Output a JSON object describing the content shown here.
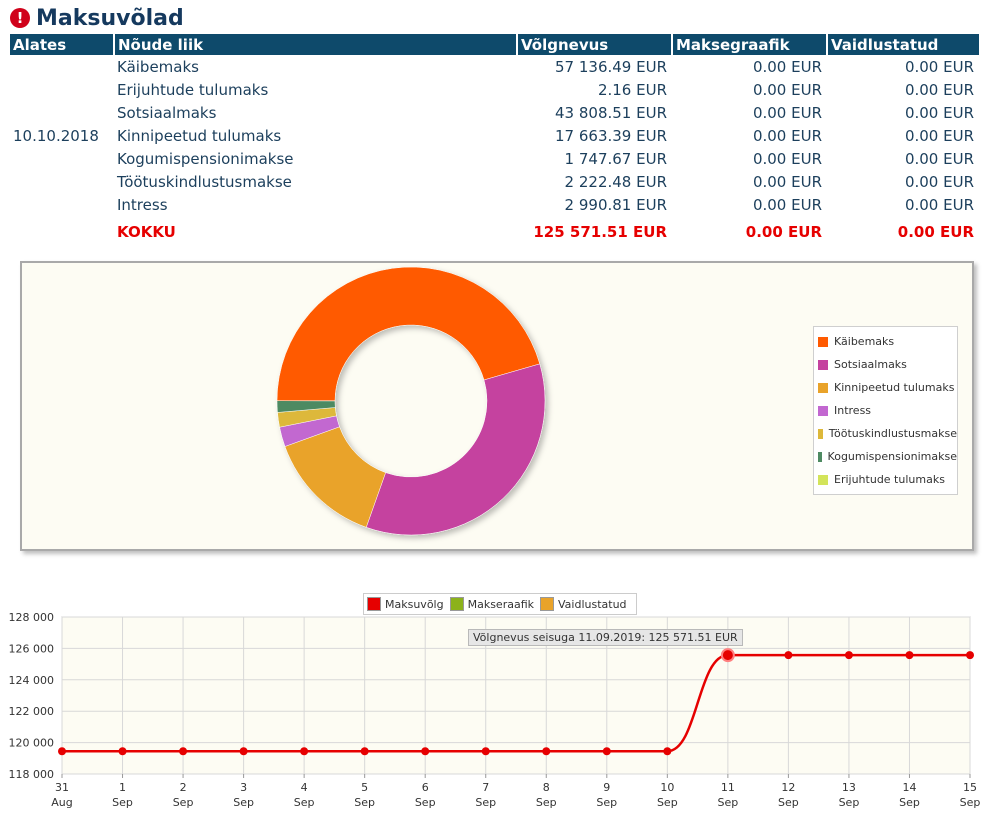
{
  "page": {
    "title": "Maksuvõlad",
    "icon": "exclamation-icon"
  },
  "table": {
    "headers": [
      "Alates",
      "Nõude liik",
      "Võlgnevus",
      "Maksegraafik",
      "Vaidlustatud"
    ],
    "date": "10.10.2018",
    "rows": [
      {
        "type": "Käibemaks",
        "debt": "57 136.49 EUR",
        "schedule": "0.00 EUR",
        "disputed": "0.00 EUR"
      },
      {
        "type": "Erijuhtude tulumaks",
        "debt": "2.16 EUR",
        "schedule": "0.00 EUR",
        "disputed": "0.00 EUR"
      },
      {
        "type": "Sotsiaalmaks",
        "debt": "43 808.51 EUR",
        "schedule": "0.00 EUR",
        "disputed": "0.00 EUR"
      },
      {
        "type": "Kinnipeetud tulumaks",
        "debt": "17 663.39 EUR",
        "schedule": "0.00 EUR",
        "disputed": "0.00 EUR"
      },
      {
        "type": "Kogumispensionimakse",
        "debt": "1 747.67 EUR",
        "schedule": "0.00 EUR",
        "disputed": "0.00 EUR"
      },
      {
        "type": "Töötuskindlustusmakse",
        "debt": "2 222.48 EUR",
        "schedule": "0.00 EUR",
        "disputed": "0.00 EUR"
      },
      {
        "type": "Intress",
        "debt": "2 990.81 EUR",
        "schedule": "0.00 EUR",
        "disputed": "0.00 EUR"
      }
    ],
    "total": {
      "label": "KOKKU",
      "debt": "125 571.51 EUR",
      "schedule": "0.00 EUR",
      "disputed": "0.00 EUR"
    }
  },
  "chart_data": [
    {
      "type": "pie",
      "donut": true,
      "legend_position": "right",
      "slices": [
        {
          "label": "Käibemaks",
          "value": 57136.49,
          "color": "#ff5a00"
        },
        {
          "label": "Sotsiaalmaks",
          "value": 43808.51,
          "color": "#c5429f"
        },
        {
          "label": "Kinnipeetud tulumaks",
          "value": 17663.39,
          "color": "#e9a32a"
        },
        {
          "label": "Intress",
          "value": 2990.81,
          "color": "#c267d0"
        },
        {
          "label": "Töötuskindlustusmakse",
          "value": 2222.48,
          "color": "#ddb83a"
        },
        {
          "label": "Kogumispensionimakse",
          "value": 1747.67,
          "color": "#4e8a62"
        },
        {
          "label": "Erijuhtude tulumaks",
          "value": 2.16,
          "color": "#d3e45a"
        }
      ]
    },
    {
      "type": "line",
      "legend": [
        {
          "name": "Maksuvõlg",
          "color": "#e60000"
        },
        {
          "name": "Makseraafik",
          "color": "#8cb21b"
        },
        {
          "name": "Vaidlustatud",
          "color": "#e9a32a"
        }
      ],
      "x": [
        {
          "day": "31",
          "month": "Aug"
        },
        {
          "day": "1",
          "month": "Sep"
        },
        {
          "day": "2",
          "month": "Sep"
        },
        {
          "day": "3",
          "month": "Sep"
        },
        {
          "day": "4",
          "month": "Sep"
        },
        {
          "day": "5",
          "month": "Sep"
        },
        {
          "day": "6",
          "month": "Sep"
        },
        {
          "day": "7",
          "month": "Sep"
        },
        {
          "day": "8",
          "month": "Sep"
        },
        {
          "day": "9",
          "month": "Sep"
        },
        {
          "day": "10",
          "month": "Sep"
        },
        {
          "day": "11",
          "month": "Sep"
        },
        {
          "day": "12",
          "month": "Sep"
        },
        {
          "day": "13",
          "month": "Sep"
        },
        {
          "day": "14",
          "month": "Sep"
        },
        {
          "day": "15",
          "month": "Sep"
        }
      ],
      "series": [
        {
          "name": "Maksuvõlg",
          "color": "#e60000",
          "values": [
            119450,
            119450,
            119450,
            119450,
            119450,
            119450,
            119450,
            119450,
            119450,
            119450,
            119450,
            125571.51,
            125571.51,
            125571.51,
            125571.51,
            125571.51
          ]
        }
      ],
      "ylim": [
        118000,
        128000
      ],
      "yticks": [
        "118 000",
        "120 000",
        "122 000",
        "124 000",
        "126 000",
        "128 000"
      ],
      "grid": true,
      "highlight_index": 11,
      "tooltip": "Võlgnevus seisuga 11.09.2019: 125 571.51 EUR"
    }
  ]
}
